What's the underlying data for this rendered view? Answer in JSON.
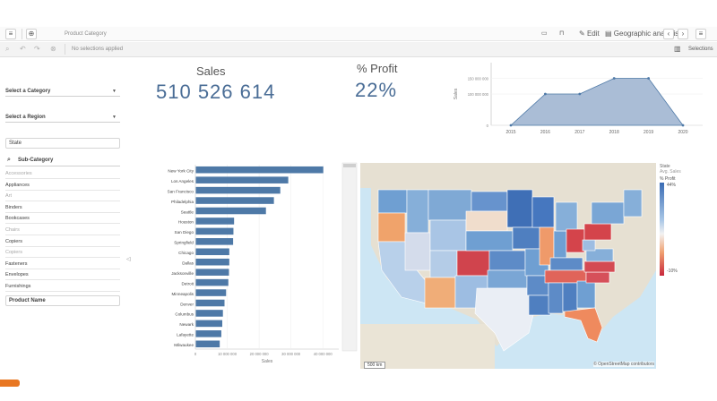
{
  "toolbar": {
    "sheet_title": "Product Category",
    "edit_label": "Edit",
    "sheet_name": "Geographic analysis",
    "selections_label": "Selections",
    "no_selections": "No selections applied"
  },
  "filters": {
    "category": "Select a Category",
    "region": "Select a Region",
    "state": "State",
    "subcategory_title": "Sub-Category",
    "subcategory_items": [
      {
        "label": "Accessories",
        "dim": true
      },
      {
        "label": "Appliances",
        "dim": false
      },
      {
        "label": "Art",
        "dim": true
      },
      {
        "label": "Binders",
        "dim": false
      },
      {
        "label": "Bookcases",
        "dim": false
      },
      {
        "label": "Chairs",
        "dim": true
      },
      {
        "label": "Copiers",
        "dim": false
      },
      {
        "label": "Copiers",
        "dim": true
      },
      {
        "label": "Fasteners",
        "dim": false
      },
      {
        "label": "Envelopes",
        "dim": false
      },
      {
        "label": "Furnishings",
        "dim": false
      }
    ],
    "product_name": "Product Name"
  },
  "kpis": {
    "sales_label": "Sales",
    "sales_value": "510 526 614",
    "profit_label": "% Profit",
    "profit_value": "22%"
  },
  "chart_data": [
    {
      "type": "area",
      "title": "",
      "xlabel": "",
      "ylabel": "Sales",
      "x": [
        "2015",
        "2016",
        "2017",
        "2018",
        "2019",
        "2020"
      ],
      "values": [
        0,
        100000000,
        100000000,
        150000000,
        150000000,
        0
      ],
      "yticks": [
        "0",
        "100 000 000",
        "150 000 000"
      ],
      "ylim": [
        0,
        200000000
      ],
      "color": "#aabdd6",
      "line_color": "#4e79a7"
    },
    {
      "type": "bar",
      "orientation": "horizontal",
      "xlabel": "Sales",
      "ylabel": "",
      "categories": [
        "New York City",
        "Los Angeles",
        "San Francisco",
        "Philadelphia",
        "Seattle",
        "Houston",
        "San Diego",
        "Springfield",
        "Chicago",
        "Dallas",
        "Jacksonville",
        "Detroit",
        "Minneapolis",
        "Denver",
        "Columbus",
        "Newark",
        "Lafayette",
        "Milwaukee"
      ],
      "values": [
        40000000,
        29000000,
        26500000,
        24500000,
        22000000,
        12000000,
        11800000,
        11700000,
        10500000,
        10500000,
        10400000,
        10200000,
        9500000,
        9000000,
        8500000,
        8300000,
        8000000,
        7500000
      ],
      "xticks": [
        "0",
        "10 000 000",
        "20 000 000",
        "30 000 000",
        "40 000 000"
      ],
      "xlim": [
        0,
        45000000
      ],
      "color": "#4e79a7"
    }
  ],
  "map": {
    "attribution": "© OpenStreetMap contributors",
    "scale_label": "500 km",
    "legend_title": "State",
    "legend_sub": "Avg. Sales",
    "legend_measure": "% Profit",
    "legend_max": "44%",
    "legend_min": "-10%"
  }
}
